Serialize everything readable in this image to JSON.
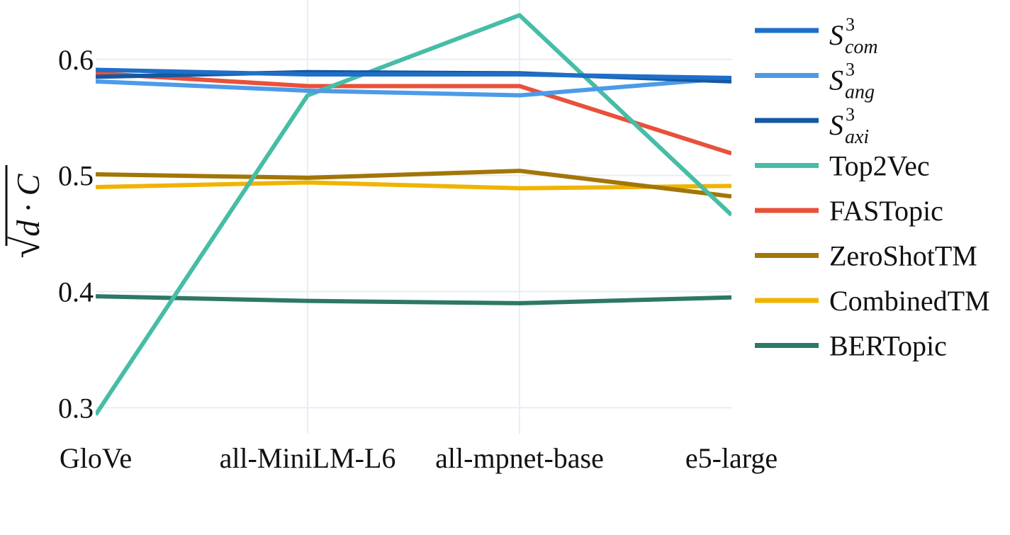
{
  "chart_data": {
    "type": "line",
    "title": "",
    "xlabel": "",
    "ylabel": {
      "sqrt_symbol": "√",
      "body": "d · C",
      "bar_symbol": "¯"
    },
    "categories": [
      "GloVe",
      "all-MiniLM-L6",
      "all-mpnet-base",
      "e5-large"
    ],
    "ylim": [
      0.285,
      0.645
    ],
    "yticks": [
      0.3,
      0.4,
      0.5,
      0.6
    ],
    "ytick_labels": [
      "0.3",
      "0.4",
      "0.5",
      "0.6"
    ],
    "grid": true,
    "legend_position": "right",
    "series": [
      {
        "name": "S_com^3",
        "legend_math": {
          "base": "S",
          "sup": "3",
          "sub": "com"
        },
        "color": "#1f6fc8",
        "values": [
          0.591,
          0.587,
          0.587,
          0.584
        ]
      },
      {
        "name": "S_ang^3",
        "legend_math": {
          "base": "S",
          "sup": "3",
          "sub": "ang"
        },
        "color": "#4c9be8",
        "values": [
          0.581,
          0.573,
          0.569,
          0.584
        ]
      },
      {
        "name": "S_axi^3",
        "legend_math": {
          "base": "S",
          "sup": "3",
          "sub": "axi"
        },
        "color": "#1558a3",
        "values": [
          0.585,
          0.589,
          0.588,
          0.581
        ]
      },
      {
        "name": "Top2Vec",
        "color": "#46bda6",
        "values": [
          0.294,
          0.569,
          0.638,
          0.466
        ]
      },
      {
        "name": "FASTopic",
        "color": "#e8513a",
        "values": [
          0.588,
          0.577,
          0.577,
          0.519
        ]
      },
      {
        "name": "ZeroShotTM",
        "color": "#a27607",
        "values": [
          0.501,
          0.498,
          0.504,
          0.482
        ]
      },
      {
        "name": "CombinedTM",
        "color": "#f0b400",
        "values": [
          0.49,
          0.494,
          0.489,
          0.491
        ]
      },
      {
        "name": "BERTopic",
        "color": "#2d7866",
        "values": [
          0.396,
          0.392,
          0.39,
          0.395
        ]
      }
    ]
  }
}
